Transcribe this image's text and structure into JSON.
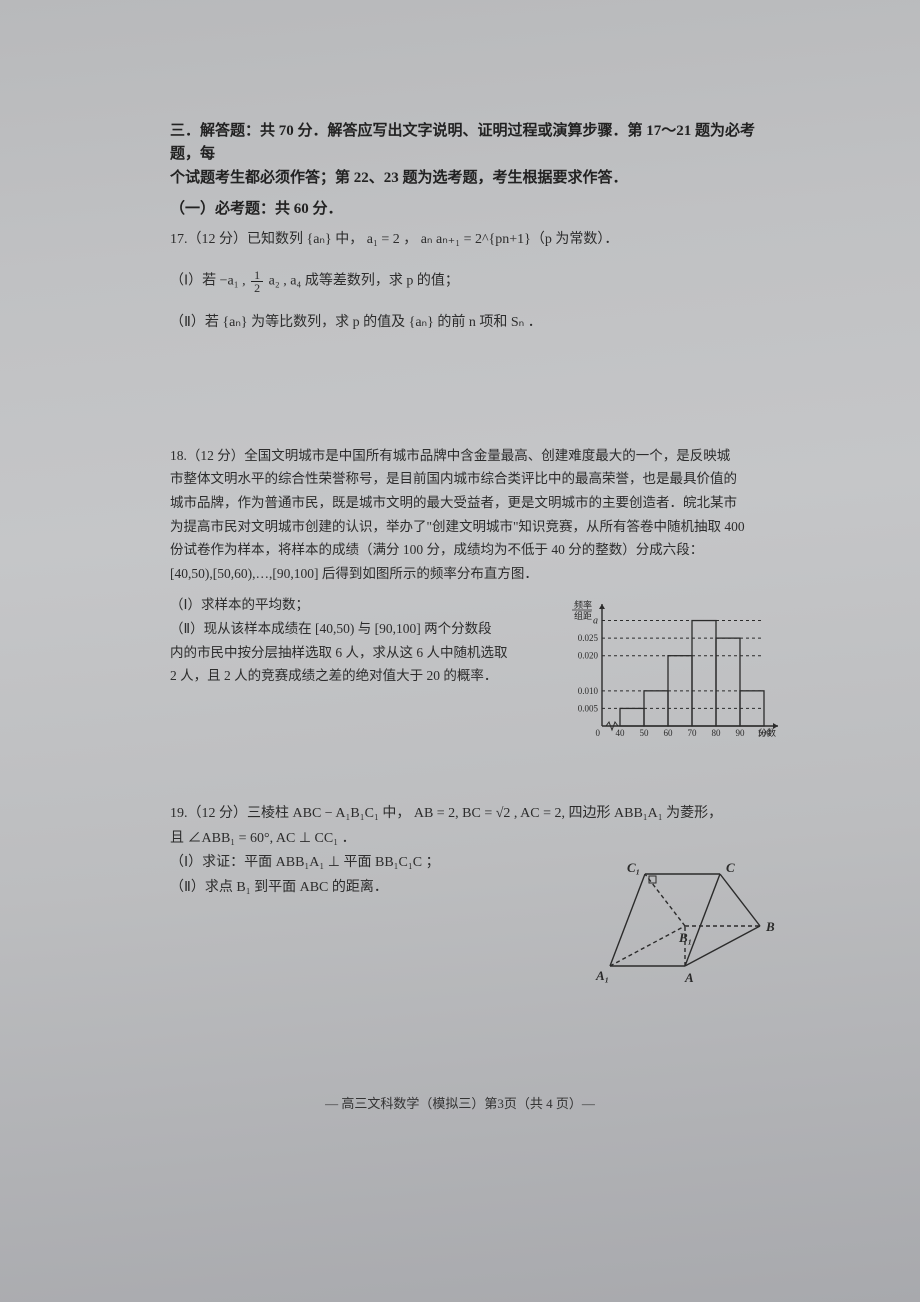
{
  "section": {
    "heading_l1": "三．解答题：共 70 分．解答应写出文字说明、证明过程或演算步骤．第 17～21 题为必考题，每",
    "heading_l2": "个试题考生都必须作答；第 22、23 题为选考题，考生根据要求作答．",
    "required": "（一）必考题：共 60 分．"
  },
  "q17": {
    "stem_a": "17.（12 分）已知数列 {aₙ} 中，  a₁ = 2 ，  aₙ aₙ₊₁ = 2^{pn+1}（p 为常数）．",
    "part1_prefix": "（Ⅰ）若 −a₁ ,",
    "part1_suffix": "a₂ , a₄ 成等差数列，求 p 的值；",
    "frac": {
      "num": "1",
      "den": "2"
    },
    "part2": "（Ⅱ）若 {aₙ} 为等比数列，求 p 的值及 {aₙ} 的前 n 项和 Sₙ ．"
  },
  "q18": {
    "l1": "18.（12 分）全国文明城市是中国所有城市品牌中含金量最高、创建难度最大的一个，是反映城",
    "l2": "市整体文明水平的综合性荣誉称号，是目前国内城市综合类评比中的最高荣誉，也是最具价值的",
    "l3": "城市品牌，作为普通市民，既是城市文明的最大受益者，更是文明城市的主要创造者．皖北某市",
    "l4": "为提高市民对文明城市创建的认识，举办了\"创建文明城市\"知识竞赛，从所有答卷中随机抽取 400",
    "l5": "份试卷作为样本，将样本的成绩（满分 100 分，成绩均为不低于 40 分的整数）分成六段：",
    "l6": "[40,50),[50,60),…,[90,100] 后得到如图所示的频率分布直方图．",
    "p1": "（Ⅰ）求样本的平均数；",
    "p2a": "（Ⅱ）现从该样本成绩在 [40,50) 与 [90,100] 两个分数段",
    "p2b": "内的市民中按分层抽样选取 6 人，求从这 6 人中随机选取",
    "p2c": "2 人，且 2 人的竞赛成绩之差的绝对值大于 20 的概率．",
    "chart": {
      "type": "histogram",
      "xlabel": "分数",
      "ylabel_l1": "频率",
      "ylabel_l2": "组距",
      "x_ticks": [
        "0",
        "40",
        "50",
        "60",
        "70",
        "80",
        "90",
        "100"
      ],
      "y_ticks": [
        {
          "v": 0.005,
          "label": "0.005"
        },
        {
          "v": 0.01,
          "label": "0.010"
        },
        {
          "v": 0.02,
          "label": "0.020"
        },
        {
          "v": 0.025,
          "label": "0.025"
        }
      ],
      "a_label": "a",
      "bars": [
        {
          "x0": 40,
          "x1": 50,
          "h": 0.005
        },
        {
          "x0": 50,
          "x1": 60,
          "h": 0.01
        },
        {
          "x0": 60,
          "x1": 70,
          "h": 0.02
        },
        {
          "x0": 70,
          "x1": 80,
          "h": 0.03
        },
        {
          "x0": 80,
          "x1": 90,
          "h": 0.025
        },
        {
          "x0": 90,
          "x1": 100,
          "h": 0.01
        }
      ],
      "xlim": [
        0,
        105
      ],
      "ylim": [
        0,
        0.033
      ],
      "bar_fill": "none",
      "bar_stroke": "#2b2b2b",
      "axis_color": "#2b2b2b",
      "dash_color": "#2b2b2b",
      "background": "#bfc0c2",
      "font_size": 9
    }
  },
  "q19": {
    "l1": "19.（12 分）三棱柱 ABC − A₁B₁C₁ 中，  AB = 2, BC = √2 , AC = 2, 四边形 ABB₁A₁ 为菱形，",
    "l2": "且 ∠ABB₁ = 60°,  AC ⊥ CC₁ ．",
    "p1": "（Ⅰ）求证：平面 ABB₁A₁ ⊥ 平面 BB₁C₁C ；",
    "p2": "（Ⅱ）求点 B₁ 到平面 ABC 的距离．",
    "prism": {
      "type": "prism-diagram",
      "stroke": "#2b2b2b",
      "dash": "4,3",
      "font_size": 13,
      "labels": {
        "A": "A",
        "B": "B",
        "C": "C",
        "A1": "A₁",
        "B1": "B₁",
        "C1": "C₁"
      },
      "points": {
        "A1": [
          20,
          110
        ],
        "A": [
          95,
          110
        ],
        "B": [
          170,
          70
        ],
        "B1": [
          95,
          70
        ],
        "C": [
          130,
          18
        ],
        "C1": [
          55,
          18
        ]
      }
    }
  },
  "footer": "— 高三文科数学（模拟三）第3页（共 4 页）—"
}
